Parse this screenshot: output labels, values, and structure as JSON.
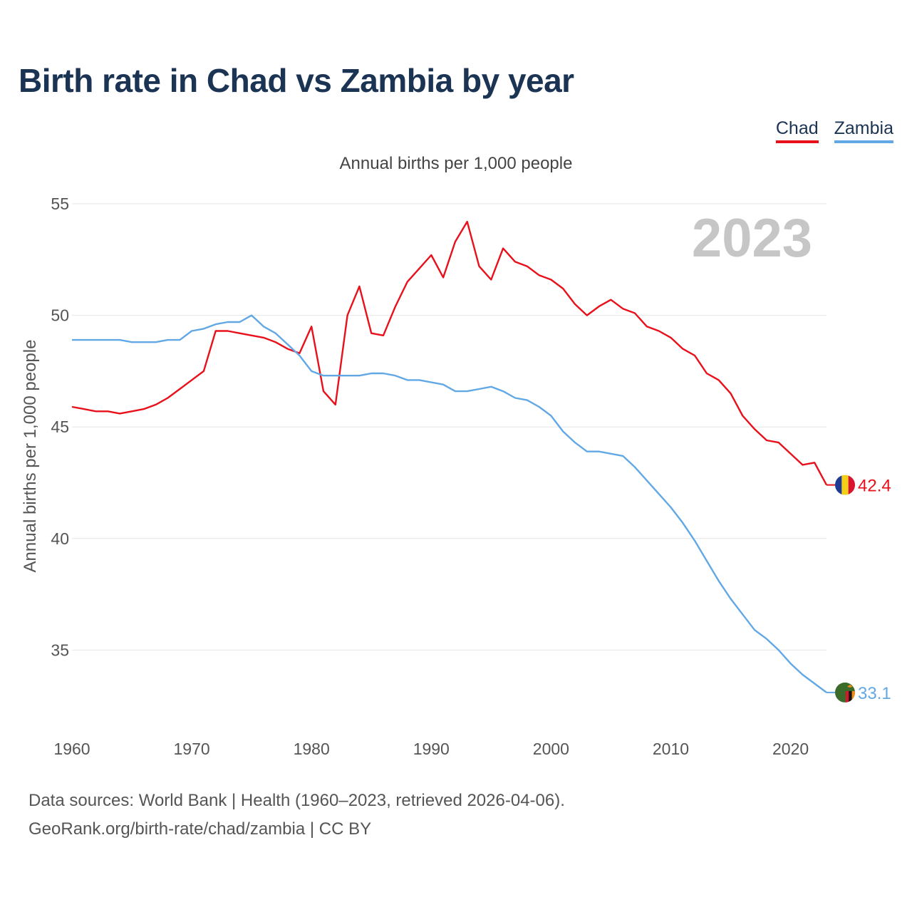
{
  "title": "Birth rate in Chad vs Zambia by year",
  "legend": [
    {
      "name": "Chad",
      "color": "#e8101a"
    },
    {
      "name": "Zambia",
      "color": "#62a8e5"
    }
  ],
  "year_label": "2023",
  "source": {
    "line1": "Data sources: World Bank | Health (1960–2023, retrieved 2026-04-06).",
    "line2": "GeoRank.org/birth-rate/chad/zambia | CC BY"
  },
  "chart_data": {
    "type": "line",
    "title": "Birth rate in Chad vs Zambia by year",
    "subtitle": "Annual births per 1,000 people",
    "xlabel": "",
    "ylabel": "Annual births per 1,000 people",
    "xlim": [
      1960,
      2023
    ],
    "ylim": [
      32,
      55
    ],
    "grid": true,
    "y_ticks": [
      35,
      40,
      45,
      50,
      55
    ],
    "x_ticks": [
      1960,
      1970,
      1980,
      1990,
      2000,
      2010,
      2020
    ],
    "x": [
      1960,
      1961,
      1962,
      1963,
      1964,
      1965,
      1966,
      1967,
      1968,
      1969,
      1970,
      1971,
      1972,
      1973,
      1974,
      1975,
      1976,
      1977,
      1978,
      1979,
      1980,
      1981,
      1982,
      1983,
      1984,
      1985,
      1986,
      1987,
      1988,
      1989,
      1990,
      1991,
      1992,
      1993,
      1994,
      1995,
      1996,
      1997,
      1998,
      1999,
      2000,
      2001,
      2002,
      2003,
      2004,
      2005,
      2006,
      2007,
      2008,
      2009,
      2010,
      2011,
      2012,
      2013,
      2014,
      2015,
      2016,
      2017,
      2018,
      2019,
      2020,
      2021,
      2022,
      2023
    ],
    "series": [
      {
        "name": "Chad",
        "color": "#e8101a",
        "last_label": "42.4",
        "values": [
          45.9,
          45.8,
          45.7,
          45.7,
          45.6,
          45.7,
          45.8,
          46.0,
          46.3,
          46.7,
          47.1,
          47.5,
          49.3,
          49.3,
          49.2,
          49.1,
          49.0,
          48.8,
          48.5,
          48.3,
          49.5,
          46.6,
          46.0,
          50.0,
          51.3,
          49.2,
          49.1,
          50.4,
          51.5,
          52.1,
          52.7,
          51.7,
          53.3,
          54.2,
          52.2,
          51.6,
          53.0,
          52.4,
          52.2,
          51.8,
          51.6,
          51.2,
          50.5,
          50.0,
          50.4,
          50.7,
          50.3,
          50.1,
          49.5,
          49.3,
          49.0,
          48.5,
          48.2,
          47.4,
          47.1,
          46.5,
          45.5,
          44.9,
          44.4,
          44.3,
          43.8,
          43.3,
          43.4,
          42.4
        ]
      },
      {
        "name": "Zambia",
        "color": "#62a8e5",
        "last_label": "33.1",
        "values": [
          48.9,
          48.9,
          48.9,
          48.9,
          48.9,
          48.8,
          48.8,
          48.8,
          48.9,
          48.9,
          49.3,
          49.4,
          49.6,
          49.7,
          49.7,
          50.0,
          49.5,
          49.2,
          48.7,
          48.2,
          47.5,
          47.3,
          47.3,
          47.3,
          47.3,
          47.4,
          47.4,
          47.3,
          47.1,
          47.1,
          47.0,
          46.9,
          46.6,
          46.6,
          46.7,
          46.8,
          46.6,
          46.3,
          46.2,
          45.9,
          45.5,
          44.8,
          44.3,
          43.9,
          43.9,
          43.8,
          43.7,
          43.2,
          42.6,
          42.0,
          41.4,
          40.7,
          39.9,
          39.0,
          38.1,
          37.3,
          36.6,
          35.9,
          35.5,
          35.0,
          34.4,
          33.9,
          33.5,
          33.1
        ]
      }
    ]
  }
}
